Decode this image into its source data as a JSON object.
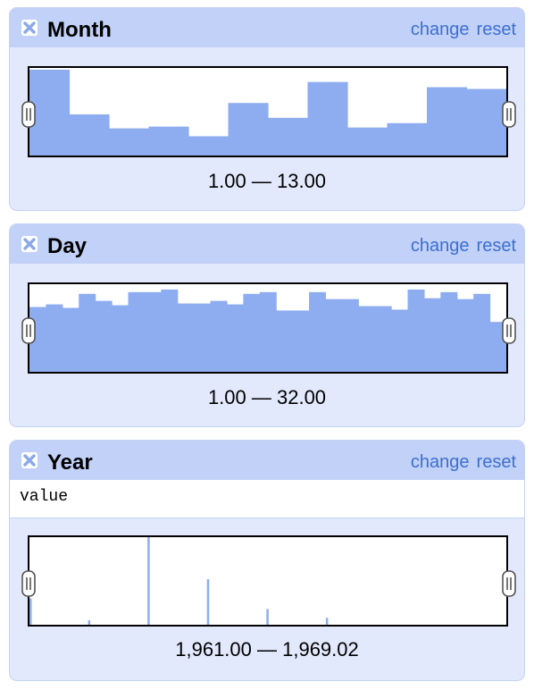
{
  "facets": [
    {
      "id": "month",
      "title": "Month",
      "change_label": "change",
      "reset_label": "reset",
      "range_label": "1.00 — 13.00",
      "chart_data": {
        "type": "bar",
        "x_range": [
          1,
          13
        ],
        "values": [
          98,
          47,
          31,
          33,
          22,
          60,
          43,
          84,
          32,
          37,
          78,
          76
        ],
        "bar_color": "#8eadf0"
      }
    },
    {
      "id": "day",
      "title": "Day",
      "change_label": "change",
      "reset_label": "reset",
      "range_label": "1.00 — 32.00",
      "chart_data": {
        "type": "bar",
        "x_range": [
          1,
          32
        ],
        "values": [
          74,
          77,
          73,
          89,
          81,
          76,
          91,
          91,
          94,
          78,
          78,
          81,
          77,
          89,
          91,
          70,
          70,
          91,
          83,
          83,
          75,
          75,
          71,
          94,
          84,
          91,
          83,
          89,
          57
        ],
        "bar_color": "#8eadf0"
      }
    },
    {
      "id": "year",
      "title": "Year",
      "change_label": "change",
      "reset_label": "reset",
      "value_field": "value",
      "range_label": "1,961.00 — 1,969.02",
      "chart_data": {
        "type": "bar",
        "x_range": [
          1961,
          1969.02
        ],
        "spikes": [
          {
            "x": 1961.0,
            "value": 30
          },
          {
            "x": 1962.0,
            "value": 5
          },
          {
            "x": 1963.0,
            "value": 100
          },
          {
            "x": 1964.0,
            "value": 52
          },
          {
            "x": 1965.0,
            "value": 18
          },
          {
            "x": 1966.0,
            "value": 8
          }
        ],
        "bar_color": "#8eadf0"
      }
    }
  ]
}
